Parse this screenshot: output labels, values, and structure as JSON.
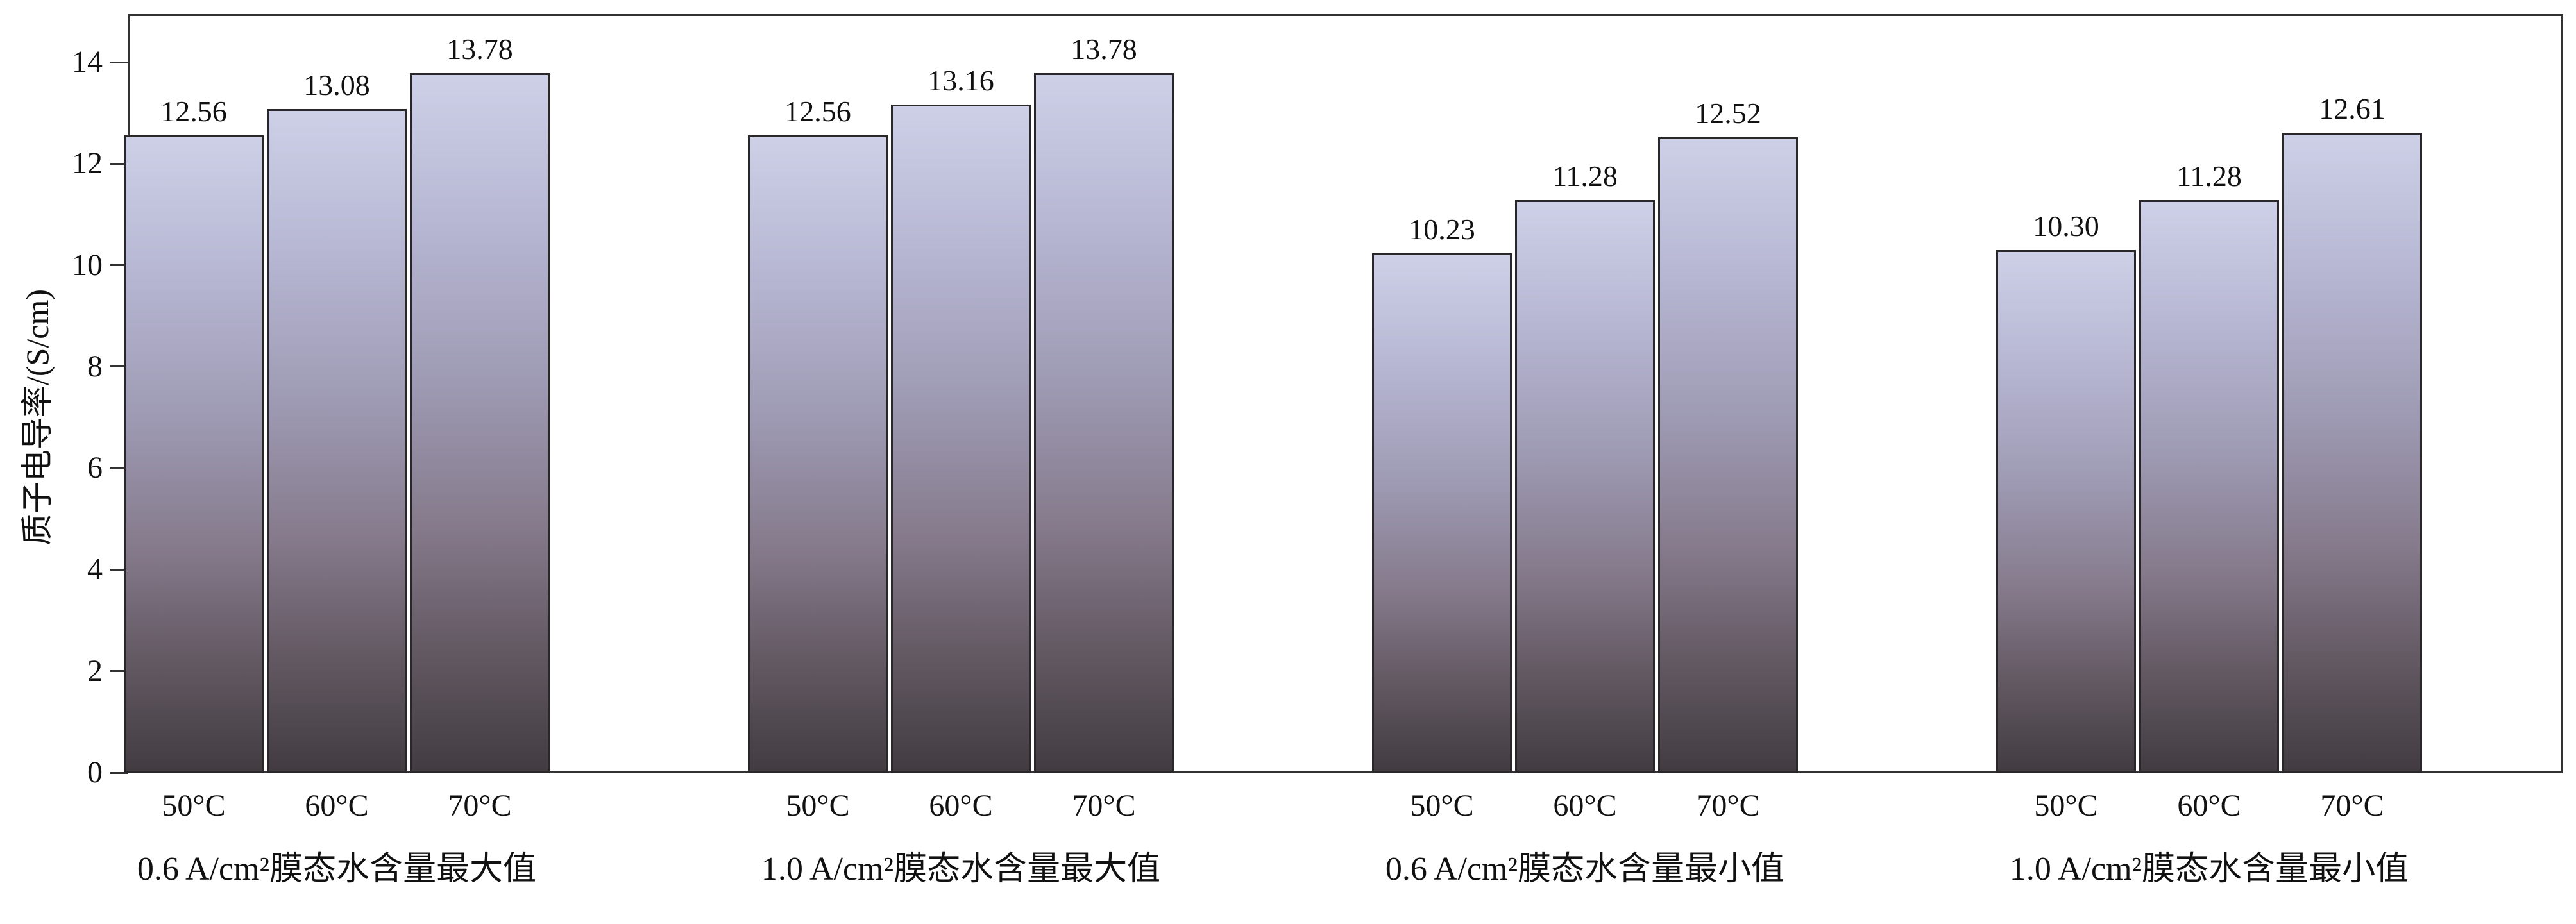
{
  "chart_data": {
    "type": "bar",
    "title": "",
    "ylabel": "质子电导率/(S/cm)",
    "xlabel": "",
    "ylim": [
      0,
      14
    ],
    "yticks": [
      0,
      2,
      4,
      6,
      8,
      10,
      12,
      14
    ],
    "categories": [
      "50°C",
      "60°C",
      "70°C"
    ],
    "groups": [
      {
        "label": "0.6 A/cm²膜态水含量最大值",
        "values": [
          12.56,
          13.08,
          13.78
        ],
        "value_labels": [
          "12.56",
          "13.08",
          "13.78"
        ]
      },
      {
        "label": "1.0 A/cm²膜态水含量最大值",
        "values": [
          12.56,
          13.16,
          13.78
        ],
        "value_labels": [
          "12.56",
          "13.16",
          "13.78"
        ]
      },
      {
        "label": "0.6 A/cm²膜态水含量最小值",
        "values": [
          10.23,
          11.28,
          12.52
        ],
        "value_labels": [
          "10.23",
          "11.28",
          "12.52"
        ]
      },
      {
        "label": "1.0 A/cm²膜态水含量最小值",
        "values": [
          10.3,
          11.28,
          12.61
        ],
        "value_labels": [
          "10.30",
          "11.28",
          "12.61"
        ]
      }
    ],
    "grid": false,
    "legend": false,
    "bar_style": {
      "gradient": [
        "#cdd0e7 0%",
        "#b6b6d2 22%",
        "#9d99b2 45%",
        "#857a8b 65%",
        "#645a64 82%",
        "#423c41 100%"
      ],
      "border_color": "#2a272b"
    },
    "axis_color": "#333333",
    "text_color": "#111111",
    "background_color": "#ffffff"
  }
}
